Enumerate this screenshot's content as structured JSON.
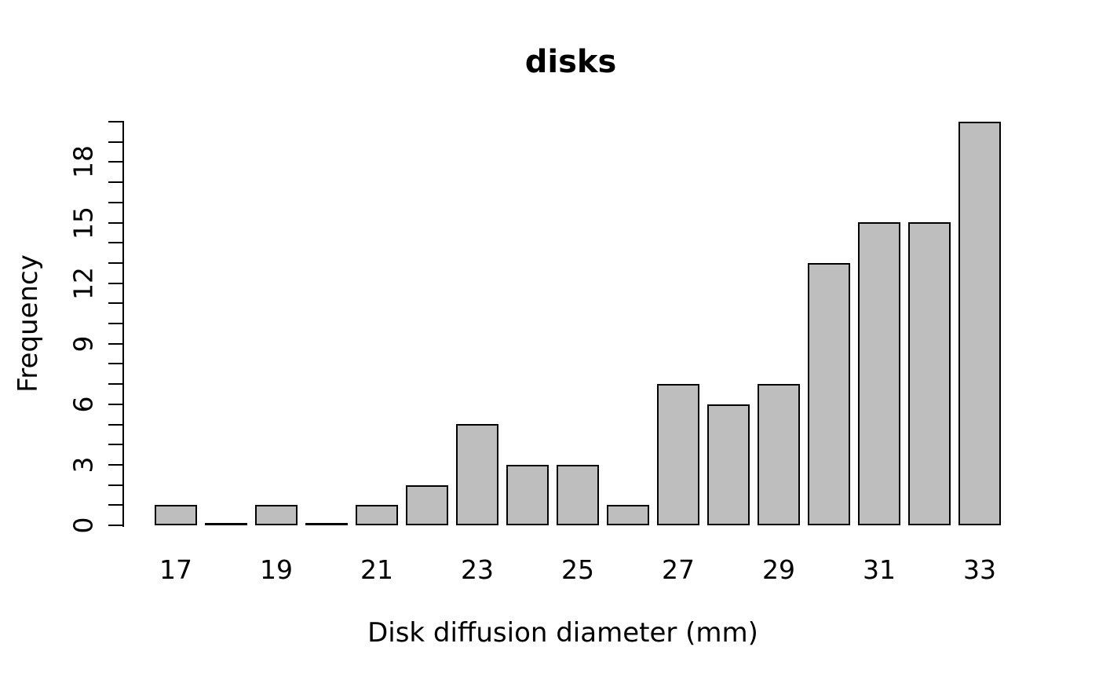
{
  "chart_data": {
    "type": "bar",
    "title": "disks",
    "xlabel": "Disk diffusion diameter (mm)",
    "ylabel": "Frequency",
    "categories": [
      17,
      18,
      19,
      20,
      21,
      22,
      23,
      24,
      25,
      26,
      27,
      28,
      29,
      30,
      31,
      32,
      33
    ],
    "values": [
      1,
      0,
      1,
      0,
      1,
      2,
      5,
      3,
      3,
      1,
      7,
      6,
      7,
      13,
      15,
      15,
      20
    ],
    "x_tick_labels_shown": [
      17,
      19,
      21,
      23,
      25,
      27,
      29,
      31,
      33
    ],
    "y_tick_labels_shown": [
      0,
      3,
      6,
      9,
      12,
      15,
      18
    ],
    "y_tick_every": 1,
    "ylim": [
      0,
      20
    ],
    "grid": false,
    "legend_position": null,
    "bar_fill_color": "#bebebe",
    "bar_border_color": "#000000",
    "axis_color": "#000000",
    "background_color": "#ffffff"
  }
}
